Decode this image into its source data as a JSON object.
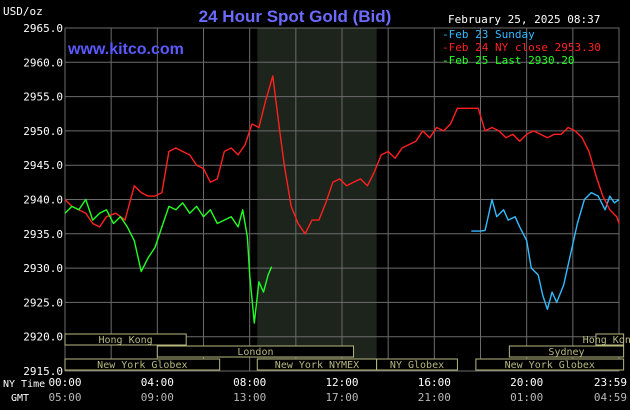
{
  "title": "24 Hour Spot Gold (Bid)",
  "website": "www.kitco.com",
  "timestamp": "February 25, 2025 08:37",
  "y_unit": "USD/oz",
  "x_axis_labels": {
    "ny": "NY Time",
    "gmt": "GMT"
  },
  "colors": {
    "background": "#000000",
    "grid": "#6b6b6b",
    "title": "#6b6bff",
    "site": "#5a5aff",
    "text": "#ffffff",
    "shade": "#1c241c",
    "feb23": "#33bbff",
    "feb24": "#ff2020",
    "feb25": "#22ff22",
    "session_box": "#b8b880"
  },
  "legend": [
    {
      "key": "feb23",
      "label": "Feb 23 Sunday"
    },
    {
      "key": "feb24",
      "label": "Feb 24 NY close 2953.30"
    },
    {
      "key": "feb25",
      "label": "Feb 25 Last 2930.20"
    }
  ],
  "sessions": [
    {
      "label": "Hong Kong",
      "row": 0,
      "start": 0,
      "end": 5.25
    },
    {
      "label": "Hong Kong",
      "row": 0,
      "start": 23.0,
      "end": 24.2
    },
    {
      "label": "London",
      "row": 1,
      "start": 4.0,
      "end": 12.5
    },
    {
      "label": "Sydney",
      "row": 1,
      "start": 19.25,
      "end": 24.2
    },
    {
      "label": "New York Globex",
      "row": 2,
      "start": 0,
      "end": 6.7
    },
    {
      "label": "New York NYMEX",
      "row": 2,
      "start": 8.33,
      "end": 13.5
    },
    {
      "label": "NY Globex",
      "row": 2,
      "start": 13.5,
      "end": 17.0
    },
    {
      "label": "New York Globex",
      "row": 2,
      "start": 17.8,
      "end": 24.2
    }
  ],
  "chart_data": {
    "type": "line",
    "x_unit": "hours since 00:00 NY time",
    "xlim": [
      0,
      24
    ],
    "ylim": [
      2915,
      2965
    ],
    "yticks": [
      2915,
      2920,
      2925,
      2930,
      2935,
      2940,
      2945,
      2950,
      2955,
      2960,
      2965
    ],
    "ytick_labels": [
      "2915.0",
      "2920.0",
      "2925.0",
      "2930.0",
      "2935.0",
      "2940.0",
      "2945.0",
      "2950.0",
      "2955.0",
      "2960.0",
      "2965.0"
    ],
    "xticks_ny": [
      "00:00",
      "04:00",
      "08:00",
      "12:00",
      "16:00",
      "20:00",
      "23:59"
    ],
    "xticks_gmt": [
      "05:00",
      "09:00",
      "13:00",
      "17:00",
      "21:00",
      "01:00",
      "04:59"
    ],
    "shaded_range": [
      8.33,
      13.5
    ],
    "grid": true,
    "series": [
      {
        "key": "feb23",
        "name": "Feb 23 Sunday",
        "x": [
          17.6,
          18.0,
          18.2,
          18.5,
          18.7,
          19.0,
          19.2,
          19.5,
          19.7,
          20.0,
          20.2,
          20.5,
          20.7,
          20.9,
          21.1,
          21.3,
          21.6,
          21.9,
          22.2,
          22.5,
          22.8,
          23.1,
          23.4,
          23.6,
          23.8,
          24.0
        ],
        "y": [
          2935.4,
          2935.4,
          2935.5,
          2940.0,
          2937.5,
          2938.5,
          2937.0,
          2937.5,
          2936.0,
          2934.0,
          2930.0,
          2929.0,
          2926.0,
          2924.0,
          2926.5,
          2925.0,
          2927.5,
          2932.0,
          2936.5,
          2940.0,
          2941.0,
          2940.5,
          2938.5,
          2940.5,
          2939.5,
          2940.0
        ]
      },
      {
        "key": "feb24",
        "name": "Feb 24 NY close 2953.30",
        "x": [
          0.0,
          0.3,
          0.6,
          0.9,
          1.2,
          1.5,
          1.8,
          2.2,
          2.6,
          3.0,
          3.3,
          3.6,
          3.9,
          4.2,
          4.5,
          4.8,
          5.1,
          5.4,
          5.7,
          6.0,
          6.3,
          6.6,
          6.9,
          7.2,
          7.5,
          7.8,
          8.1,
          8.4,
          8.7,
          9.0,
          9.3,
          9.5,
          9.8,
          10.1,
          10.4,
          10.7,
          11.0,
          11.3,
          11.6,
          11.9,
          12.2,
          12.5,
          12.8,
          13.1,
          13.4,
          13.7,
          14.0,
          14.3,
          14.6,
          14.9,
          15.2,
          15.5,
          15.8,
          16.1,
          16.4,
          16.7,
          17.0,
          17.3,
          17.6,
          17.9,
          18.2,
          18.5,
          18.8,
          19.1,
          19.4,
          19.7,
          20.0,
          20.3,
          20.6,
          20.9,
          21.2,
          21.5,
          21.8,
          22.1,
          22.4,
          22.7,
          23.0,
          23.3,
          23.6,
          23.9,
          24.0
        ],
        "y": [
          2940.0,
          2939.0,
          2938.5,
          2938.0,
          2936.5,
          2936.0,
          2937.5,
          2938.0,
          2937.0,
          2942.0,
          2941.0,
          2940.5,
          2940.5,
          2941.0,
          2947.0,
          2947.5,
          2947.0,
          2946.5,
          2945.0,
          2944.5,
          2942.5,
          2943.0,
          2947.0,
          2947.5,
          2946.5,
          2948.0,
          2951.0,
          2950.5,
          2954.5,
          2958.0,
          2950.0,
          2945.0,
          2939.0,
          2936.5,
          2935.0,
          2937.0,
          2937.0,
          2939.5,
          2942.5,
          2943.0,
          2942.0,
          2942.5,
          2943.0,
          2942.0,
          2944.0,
          2946.5,
          2947.0,
          2946.0,
          2947.5,
          2948.0,
          2948.5,
          2950.0,
          2949.0,
          2950.5,
          2950.0,
          2951.0,
          2953.3,
          2953.3,
          2953.3,
          2953.3,
          2950.0,
          2950.5,
          2950.0,
          2949.0,
          2949.5,
          2948.5,
          2949.5,
          2950.0,
          2949.5,
          2949.0,
          2949.5,
          2949.5,
          2950.5,
          2950.0,
          2949.0,
          2947.0,
          2943.5,
          2940.5,
          2938.5,
          2937.5,
          2936.5
        ]
      },
      {
        "key": "feb25",
        "name": "Feb 25 Last 2930.20",
        "x": [
          0.0,
          0.3,
          0.6,
          0.9,
          1.2,
          1.5,
          1.8,
          2.1,
          2.4,
          2.7,
          3.0,
          3.3,
          3.6,
          3.9,
          4.2,
          4.5,
          4.8,
          5.1,
          5.4,
          5.7,
          6.0,
          6.3,
          6.6,
          6.9,
          7.2,
          7.5,
          7.7,
          7.9,
          8.0,
          8.2,
          8.4,
          8.6,
          8.8,
          8.95
        ],
        "y": [
          2938.0,
          2939.0,
          2938.5,
          2940.0,
          2937.0,
          2938.0,
          2938.5,
          2936.5,
          2937.5,
          2936.0,
          2934.0,
          2929.5,
          2931.5,
          2933.0,
          2936.0,
          2939.0,
          2938.5,
          2939.5,
          2938.0,
          2939.0,
          2937.5,
          2938.5,
          2936.5,
          2937.0,
          2937.5,
          2936.0,
          2938.5,
          2934.5,
          2929.0,
          2922.0,
          2928.0,
          2926.5,
          2929.0,
          2930.2
        ]
      }
    ]
  }
}
